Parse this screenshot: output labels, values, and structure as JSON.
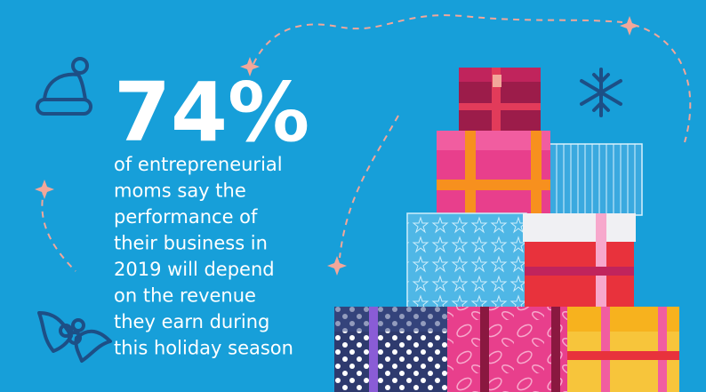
{
  "stat": {
    "value": "74%",
    "text_lines": [
      "of entrepreneurial",
      "moms say the",
      "performance of",
      "their business in",
      "2019 will depend",
      "on the revenue",
      "they earn during",
      "this holiday season"
    ]
  }
}
